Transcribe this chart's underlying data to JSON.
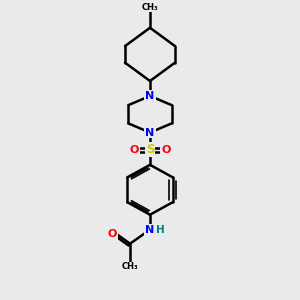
{
  "bg_color": "#e8eaec",
  "bond_color": "#000000",
  "bond_width": 1.8,
  "atom_colors": {
    "N": "#0000ff",
    "O": "#ff0000",
    "S": "#cccc00",
    "H": "#008080",
    "C": "#000000"
  },
  "figsize": [
    3.0,
    3.0
  ],
  "dpi": 100
}
